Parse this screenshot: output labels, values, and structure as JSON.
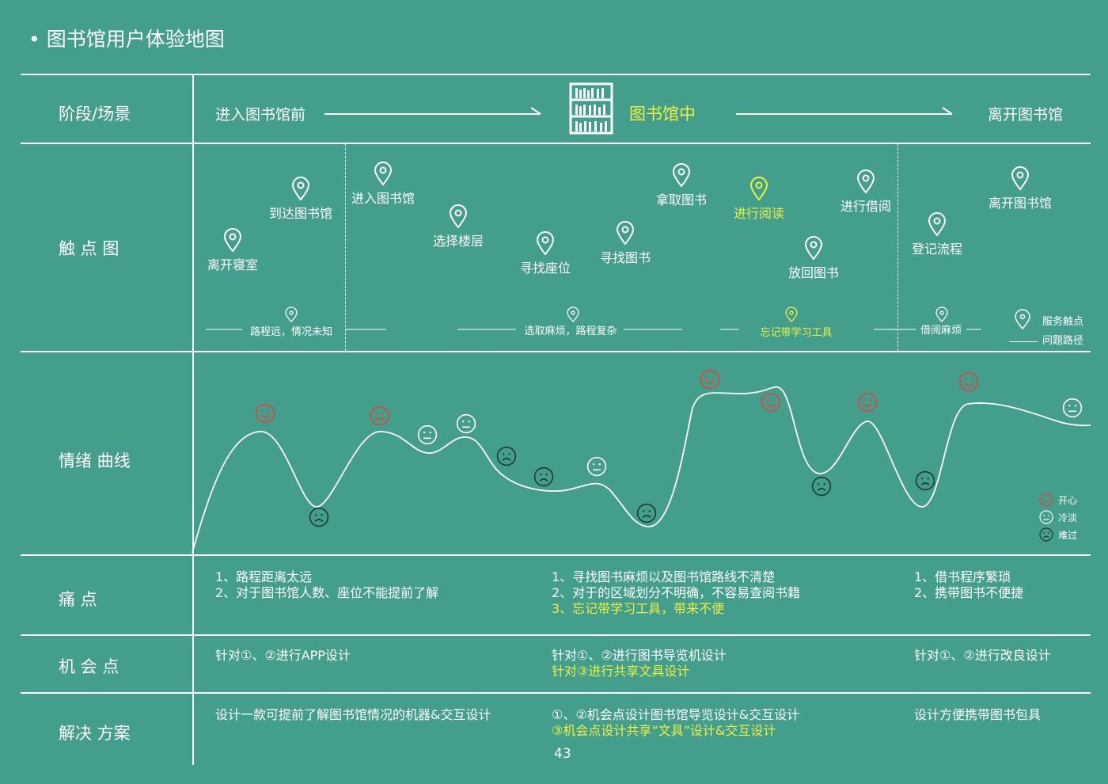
{
  "title": "图书馆用户体验地图",
  "title_bullet": "•",
  "rows": {
    "stage": "阶段/场景",
    "touchpoints": "触  点  图",
    "emotion": "情绪 曲线",
    "pain": "痛      点",
    "opportunity": "机  会  点",
    "solution": "解决 方案"
  },
  "stages": {
    "before": "进入图书馆前",
    "during": "图书馆中",
    "after": "离开图书馆"
  },
  "touchpoints": [
    {
      "label": "离开寝室",
      "highlight": false
    },
    {
      "label": "到达图书馆",
      "highlight": false
    },
    {
      "label": "进入图书馆",
      "highlight": false
    },
    {
      "label": "选择楼层",
      "highlight": false
    },
    {
      "label": "寻找座位",
      "highlight": false
    },
    {
      "label": "寻找图书",
      "highlight": false
    },
    {
      "label": "拿取图书",
      "highlight": false
    },
    {
      "label": "进行阅读",
      "highlight": true
    },
    {
      "label": "放回图书",
      "highlight": false
    },
    {
      "label": "进行借阅",
      "highlight": false
    },
    {
      "label": "登记流程",
      "highlight": false
    },
    {
      "label": "离开图书馆",
      "highlight": false
    }
  ],
  "problems": [
    {
      "label": "路程远，情况未知",
      "highlight": false
    },
    {
      "label": "选取麻烦，路程复杂",
      "highlight": false
    },
    {
      "label": "忘记带学习工具",
      "highlight": true
    },
    {
      "label": "借阅麻烦",
      "highlight": false
    }
  ],
  "touch_legend": {
    "service": "服务触点",
    "problem": "问题路径"
  },
  "emotion_legend": {
    "happy": "开心",
    "neutral": "冷淡",
    "sad": "难过"
  },
  "emotions": [
    "happy",
    "sad",
    "happy",
    "neutral",
    "neutral",
    "sad",
    "sad",
    "neutral",
    "sad",
    "happy",
    "happy",
    "sad",
    "happy",
    "sad",
    "happy",
    "neutral"
  ],
  "pain_points": {
    "before": [
      "1、路程距离太远",
      "2、对于图书馆人数、座位不能提前了解"
    ],
    "during": [
      "1、寻找图书麻烦以及图书馆路线不清楚",
      "2、对于的区域划分不明确，不容易查阅书籍"
    ],
    "during_highlight": "3、忘记带学习工具，带来不便",
    "after": [
      "1、借书程序繁琐",
      "2、携带图书不便捷"
    ]
  },
  "opportunities": {
    "before": "针对①、②进行APP设计",
    "during": "针对①、②进行图书导览机设计",
    "during_highlight": "针对③进行共享文具设计",
    "after": "针对①、②进行改良设计"
  },
  "solutions": {
    "before": "设计一款可提前了解图书馆情况的机器&交互设计",
    "during": "①、②机会点设计图书馆导览设计&交互设计",
    "during_highlight": "③机会点设计共享“文具”设计&交互设计",
    "after": "设计方便携带图书包具"
  },
  "page_number": "43",
  "colors": {
    "background": "#449e8c",
    "line": "#ffffff",
    "highlight": "#eef042",
    "happy": "#e0453c",
    "neutral": "#ffffff",
    "sad": "#1d3b33"
  }
}
